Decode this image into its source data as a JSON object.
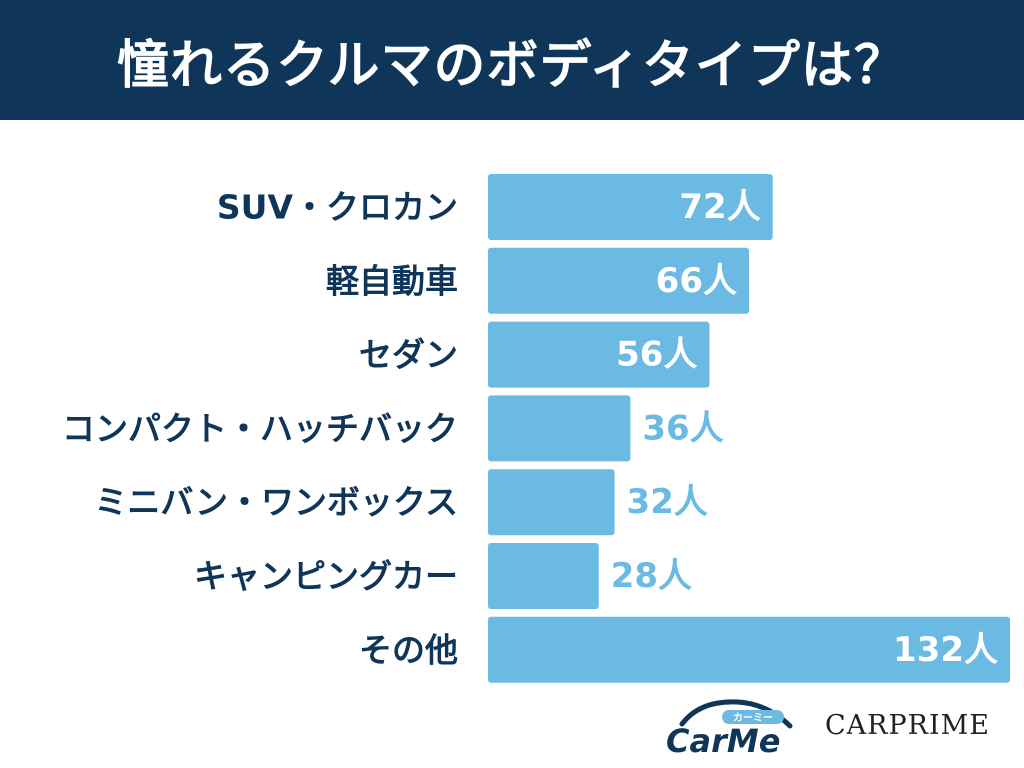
{
  "header": {
    "title": "憧れるクルマのボディタイプは？"
  },
  "chart_data": {
    "type": "bar",
    "orientation": "horizontal",
    "title": "憧れるクルマのボディタイプは？",
    "categories": [
      "SUV・クロカン",
      "軽自動車",
      "セダン",
      "コンパクト・ハッチバック",
      "ミニバン・ワンボックス",
      "キャンピングカー",
      "その他"
    ],
    "values": [
      72,
      66,
      56,
      36,
      32,
      28,
      132
    ],
    "value_labels": [
      "72人",
      "66人",
      "56人",
      "36人",
      "32人",
      "28人",
      "132人"
    ],
    "unit": "人",
    "xlim": [
      0,
      132
    ],
    "grid": false,
    "legend": "none",
    "bar_color": "#6bbae3",
    "label_color": "#0f3559"
  },
  "logos": {
    "carme_kana": "カーミー",
    "carme_text": "CarMe",
    "carprime_text": "CARPRIME"
  },
  "colors": {
    "header_bg": "#0f3559",
    "bar": "#6bbae3",
    "text_dark": "#0f3559"
  }
}
